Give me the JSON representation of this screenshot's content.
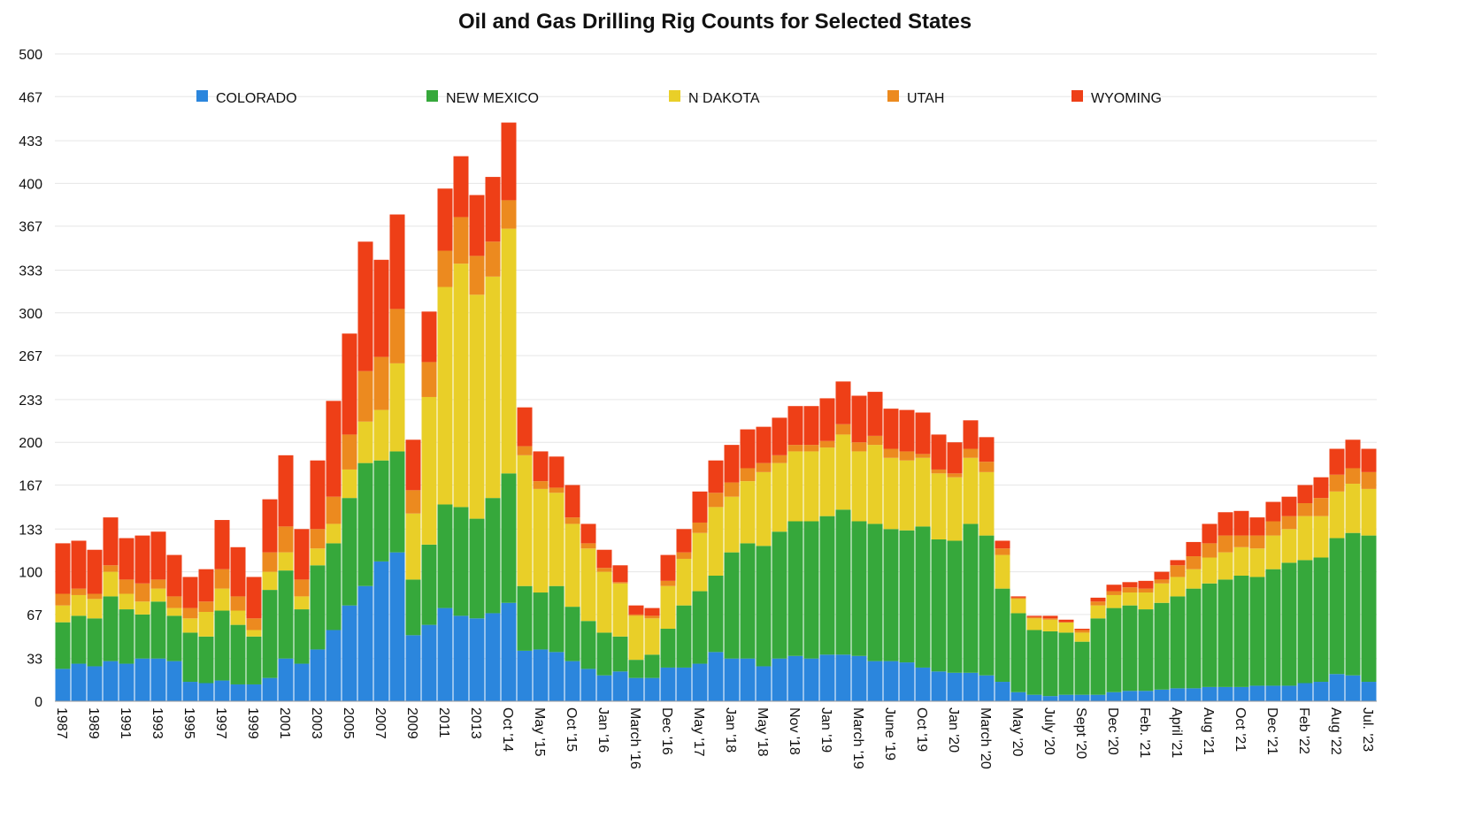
{
  "chart_data": {
    "type": "stacked_bar",
    "title": "Oil and Gas Drilling Rig Counts for Selected States",
    "categories": [
      "1987",
      null,
      "1989",
      null,
      "1991",
      null,
      "1993",
      null,
      "1995",
      null,
      "1997",
      null,
      "1999",
      null,
      "2001",
      null,
      "2003",
      null,
      "2005",
      null,
      "2007",
      null,
      "2009",
      null,
      "2011",
      null,
      "2013",
      null,
      "Oct '14",
      null,
      "May '15",
      null,
      "Oct '15",
      null,
      "Jan '16",
      null,
      "March '16",
      null,
      "Dec '16",
      null,
      "May '17",
      null,
      "Jan '18",
      null,
      "May '18",
      null,
      "Nov '18",
      null,
      "Jan '19",
      null,
      "March '19",
      null,
      "June '19",
      null,
      "Oct '19",
      null,
      "Jan '20",
      null,
      "March '20",
      null,
      "May '20",
      null,
      "July '20",
      null,
      "Sept '20",
      null,
      "Dec '20",
      null,
      "Feb. '21",
      null,
      "April '21",
      null,
      "Aug '21",
      null,
      "Oct '21",
      null,
      "Dec '21",
      null,
      "Feb '22",
      null,
      "Aug '22",
      null,
      "Jul. '23"
    ],
    "series": [
      {
        "name": "COLORADO",
        "color": "#2b86dd",
        "values": [
          25,
          29,
          27,
          31,
          29,
          33,
          33,
          31,
          15,
          14,
          16,
          13,
          13,
          18,
          33,
          29,
          40,
          55,
          74,
          89,
          108,
          115,
          51,
          59,
          72,
          66,
          64,
          68,
          76,
          39,
          40,
          38,
          31,
          25,
          20,
          23,
          18,
          18,
          26,
          26,
          29,
          38,
          33,
          33,
          27,
          33,
          35,
          33,
          36,
          36,
          35,
          31,
          31,
          30,
          26,
          23,
          22,
          22,
          20,
          15,
          7,
          5,
          4,
          5,
          5,
          5,
          7,
          8,
          8,
          9,
          10,
          10,
          11,
          11,
          11,
          12,
          12,
          12,
          14,
          15,
          21,
          20,
          15
        ]
      },
      {
        "name": "NEW MEXICO",
        "color": "#36a83b",
        "values": [
          36,
          37,
          37,
          50,
          42,
          34,
          44,
          35,
          38,
          36,
          54,
          46,
          37,
          68,
          68,
          42,
          65,
          67,
          83,
          95,
          78,
          78,
          43,
          62,
          80,
          84,
          77,
          89,
          100,
          50,
          44,
          51,
          42,
          37,
          33,
          27,
          14,
          18,
          30,
          48,
          56,
          59,
          82,
          89,
          93,
          98,
          104,
          106,
          107,
          112,
          104,
          106,
          102,
          102,
          109,
          102,
          102,
          115,
          108,
          72,
          61,
          50,
          50,
          48,
          41,
          59,
          65,
          66,
          63,
          67,
          71,
          77,
          80,
          83,
          86,
          84,
          90,
          95,
          95,
          96,
          105,
          110,
          113
        ]
      },
      {
        "name": "N DAKOTA",
        "color": "#e9cf28",
        "values": [
          13,
          16,
          15,
          19,
          12,
          10,
          10,
          6,
          11,
          19,
          17,
          11,
          5,
          14,
          14,
          10,
          13,
          15,
          22,
          32,
          39,
          68,
          51,
          114,
          168,
          188,
          173,
          171,
          189,
          101,
          80,
          72,
          64,
          56,
          47,
          41,
          34,
          28,
          33,
          36,
          45,
          53,
          43,
          48,
          57,
          53,
          54,
          54,
          53,
          58,
          54,
          61,
          55,
          54,
          53,
          51,
          49,
          51,
          49,
          26,
          11,
          9,
          9,
          8,
          7,
          10,
          10,
          10,
          13,
          15,
          15,
          15,
          20,
          21,
          22,
          22,
          26,
          26,
          34,
          32,
          36,
          38,
          36
        ]
      },
      {
        "name": "UTAH",
        "color": "#ec8a1f",
        "values": [
          9,
          5,
          4,
          5,
          11,
          14,
          7,
          9,
          8,
          8,
          15,
          11,
          9,
          15,
          20,
          13,
          15,
          21,
          27,
          39,
          41,
          42,
          18,
          27,
          28,
          36,
          30,
          27,
          22,
          7,
          6,
          4,
          5,
          4,
          3,
          1,
          1,
          2,
          4,
          5,
          8,
          11,
          11,
          10,
          7,
          6,
          5,
          5,
          5,
          8,
          7,
          7,
          7,
          7,
          3,
          3,
          3,
          7,
          8,
          5,
          1,
          1,
          1,
          0,
          2,
          3,
          3,
          4,
          3,
          3,
          9,
          10,
          11,
          13,
          9,
          10,
          11,
          10,
          10,
          14,
          13,
          12,
          13
        ]
      },
      {
        "name": "WYOMING",
        "color": "#ee3f17",
        "values": [
          39,
          37,
          34,
          37,
          32,
          37,
          37,
          32,
          24,
          25,
          38,
          38,
          32,
          41,
          55,
          39,
          53,
          74,
          78,
          100,
          75,
          73,
          39,
          39,
          48,
          47,
          47,
          50,
          60,
          30,
          23,
          24,
          25,
          15,
          14,
          13,
          7,
          6,
          20,
          18,
          24,
          25,
          29,
          30,
          28,
          29,
          30,
          30,
          33,
          33,
          36,
          34,
          31,
          32,
          32,
          27,
          24,
          22,
          19,
          6,
          1,
          1,
          2,
          2,
          1,
          3,
          5,
          4,
          6,
          6,
          4,
          11,
          15,
          18,
          19,
          14,
          15,
          15,
          14,
          16,
          20,
          22,
          18
        ]
      }
    ],
    "ylim": [
      0,
      500
    ],
    "yticks": [
      0,
      33,
      67,
      100,
      133,
      167,
      200,
      233,
      267,
      300,
      333,
      367,
      400,
      433,
      467,
      500
    ],
    "grid": true,
    "legend": "top"
  }
}
